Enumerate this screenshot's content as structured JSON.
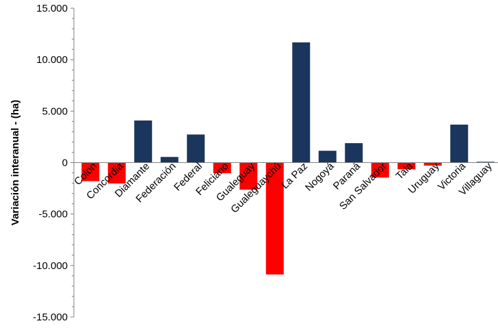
{
  "chart_data": {
    "type": "bar",
    "title": "",
    "xlabel": "",
    "ylabel": "Variación interanual - (ha)",
    "ylim": [
      -15000,
      15000
    ],
    "yticks": [
      15000,
      10000,
      5000,
      0,
      -5000,
      -10000,
      -15000
    ],
    "ytick_labels": [
      "15.000",
      "10.000",
      "5.000",
      "0",
      "-5.000",
      "-10.000",
      "-15.000"
    ],
    "grid": false,
    "legend": "none",
    "categories": [
      "Colon",
      "Concordia",
      "Diamante",
      "Federación",
      "Federal",
      "Feliciano",
      "Gualeguay",
      "Gualeguaychú",
      "La Paz",
      "Nogoyá",
      "Paraná",
      "San Salvador",
      "Tala",
      "Uruguay",
      "Victoria",
      "Villaguay"
    ],
    "values": [
      -1800,
      -2030,
      4090,
      550,
      2730,
      -1030,
      -2630,
      -10870,
      11680,
      1150,
      1890,
      -1450,
      -650,
      -290,
      3690,
      80
    ],
    "colors": {
      "positive": "#1b365d",
      "negative": "#ff0000",
      "axis": "#808080",
      "text": "#000000"
    }
  }
}
